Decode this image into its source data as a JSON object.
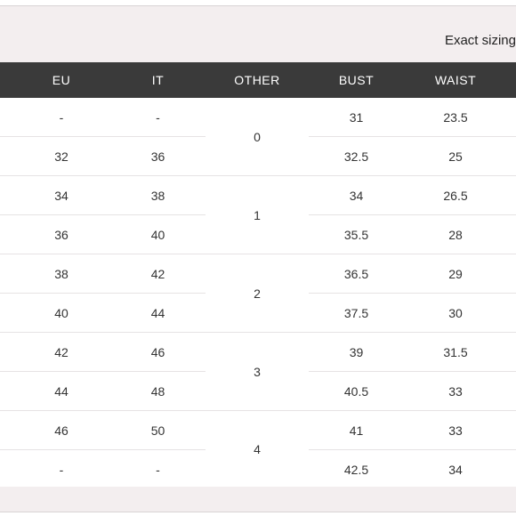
{
  "note": "Exact sizing",
  "headers": [
    "EU",
    "IT",
    "OTHER",
    "BUST",
    "WAIST"
  ],
  "rows": [
    {
      "eu": "-",
      "it": "-",
      "bust": "31",
      "waist": "23.5"
    },
    {
      "eu": "32",
      "it": "36",
      "bust": "32.5",
      "waist": "25"
    },
    {
      "eu": "34",
      "it": "38",
      "bust": "34",
      "waist": "26.5"
    },
    {
      "eu": "36",
      "it": "40",
      "bust": "35.5",
      "waist": "28"
    },
    {
      "eu": "38",
      "it": "42",
      "bust": "36.5",
      "waist": "29"
    },
    {
      "eu": "40",
      "it": "44",
      "bust": "37.5",
      "waist": "30"
    },
    {
      "eu": "42",
      "it": "46",
      "bust": "39",
      "waist": "31.5"
    },
    {
      "eu": "44",
      "it": "48",
      "bust": "40.5",
      "waist": "33"
    },
    {
      "eu": "46",
      "it": "50",
      "bust": "41",
      "waist": "33"
    },
    {
      "eu": "-",
      "it": "-",
      "bust": "42.5",
      "waist": "34"
    }
  ],
  "other": [
    "0",
    "1",
    "2",
    "3",
    "4"
  ]
}
